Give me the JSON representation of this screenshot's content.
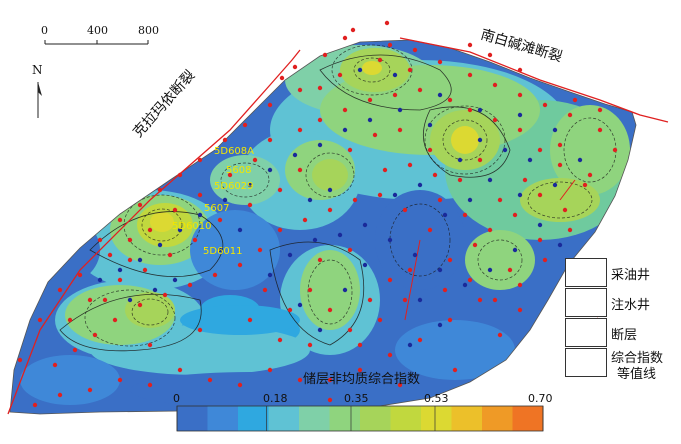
{
  "title": "储层非均质综合指数",
  "scale_bar": {
    "ticks": [
      "0",
      "400",
      "800"
    ]
  },
  "north_arrow": {
    "label": "N"
  },
  "faults": {
    "fault_1": "克拉玛依断裂",
    "fault_2": "南白碱滩断裂"
  },
  "well_labels": [
    "5D608A",
    "5608",
    "5D6029",
    "5607",
    "5D6010",
    "5D6011"
  ],
  "legend": {
    "items": [
      {
        "label": "采油井",
        "icon": "red-dot-icon",
        "color": "#e02020"
      },
      {
        "label": "注水井",
        "icon": "blue-dot-icon",
        "color": "#1a2a9a"
      },
      {
        "label": "断层",
        "icon": "fault-line-icon",
        "color": "#e02020"
      },
      {
        "label": "综合指数等值线",
        "line1": "综合指数",
        "line2": "等值线",
        "icon": "contour-line-icon"
      }
    ]
  },
  "colorbar": {
    "ticks": [
      "0",
      "0.18",
      "0.35",
      "0.53",
      "0.70"
    ],
    "colors": [
      "#3a6fc6",
      "#3f88d8",
      "#2fa8e0",
      "#5fc2d4",
      "#7fd0a8",
      "#8fd47e",
      "#a6d45a",
      "#c1d83e",
      "#dcd932",
      "#ecc02a",
      "#ef9a26",
      "#ef7424"
    ]
  },
  "colors": {
    "low": "#3a6fc6",
    "mid_low": "#2fa8e0",
    "mid": "#7fd0a8",
    "mid_high": "#a6d45a",
    "high": "#dcd932",
    "fault": "#e02020",
    "injector": "#1a2a9a",
    "producer": "#e02020"
  }
}
